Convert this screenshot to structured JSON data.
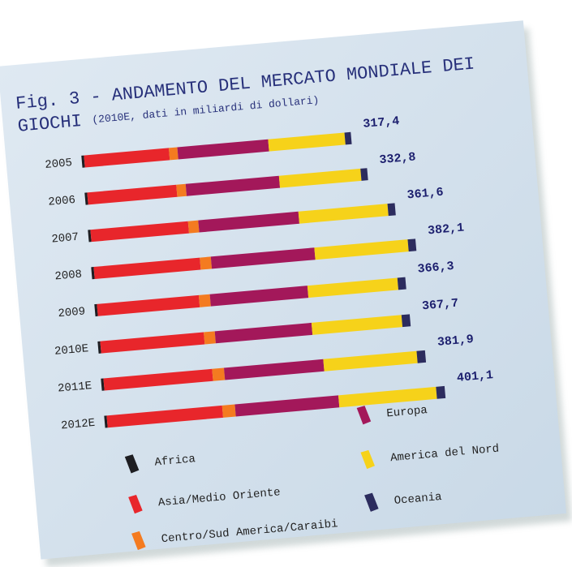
{
  "chart_data": {
    "type": "stacked-bar-horizontal",
    "title": [
      "Fig. 3 - ANDAMENTO DEL MERCATO MONDIALE DEI",
      "GIOCHI"
    ],
    "subtitle": "(2010E, dati in miliardi di dollari)",
    "categories": [
      "2005",
      "2006",
      "2007",
      "2008",
      "2009",
      "2010E",
      "2011E",
      "2012E"
    ],
    "series": [
      {
        "name": "Africa",
        "color": "#1e1e22",
        "values": [
          3,
          3,
          3,
          3,
          3,
          3,
          3,
          3
        ]
      },
      {
        "name": "Asia/Medio Oriente",
        "color": "#e8262b",
        "values": [
          100,
          105,
          115,
          125,
          120,
          122,
          128,
          136
        ]
      },
      {
        "name": "Centro/Sud America/Caraibi",
        "color": "#f47b20",
        "values": [
          10,
          11,
          12,
          13,
          13,
          13,
          14,
          15
        ]
      },
      {
        "name": "Europa",
        "color": "#a3185a",
        "values": [
          107,
          110,
          118,
          122,
          115,
          114,
          117,
          122
        ]
      },
      {
        "name": "America del Nord",
        "color": "#f6d21a",
        "values": [
          90,
          96,
          105,
          110,
          106,
          106,
          110,
          115
        ]
      },
      {
        "name": "Oceania",
        "color": "#2c2c5e",
        "values": [
          7.4,
          7.8,
          8.6,
          9.1,
          9.3,
          9.7,
          9.9,
          10.1
        ]
      }
    ],
    "totals": [
      317.4,
      332.8,
      361.6,
      382.1,
      366.3,
      367.7,
      381.9,
      401.1
    ],
    "total_labels": [
      "317,4",
      "332,8",
      "361,6",
      "382,1",
      "366,3",
      "367,7",
      "381,9",
      "401,1"
    ]
  }
}
